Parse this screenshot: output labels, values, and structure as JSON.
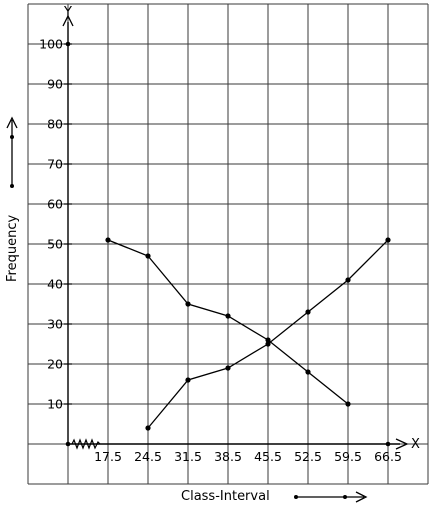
{
  "chart_data": {
    "type": "line",
    "xlabel": "Class-Interval",
    "ylabel": "Frequency",
    "x_axis_letter": "X",
    "y_axis_letter": "Y",
    "x_ticks": [
      "17.5",
      "24.5",
      "31.5",
      "38.5",
      "45.5",
      "52.5",
      "59.5",
      "66.5"
    ],
    "y_ticks": [
      "10",
      "20",
      "30",
      "40",
      "50",
      "60",
      "70",
      "80",
      "90",
      "100"
    ],
    "ylim": [
      0,
      100
    ],
    "grid": true,
    "series": [
      {
        "x": [
          "17.5",
          "24.5",
          "31.5",
          "38.5",
          "45.5",
          "52.5",
          "59.5"
        ],
        "values": [
          51,
          47,
          35,
          32,
          26,
          18,
          10
        ]
      },
      {
        "x": [
          "24.5",
          "31.5",
          "38.5",
          "45.5",
          "52.5",
          "59.5",
          "66.5"
        ],
        "values": [
          4,
          16,
          19,
          25,
          33,
          41,
          51
        ]
      }
    ]
  }
}
